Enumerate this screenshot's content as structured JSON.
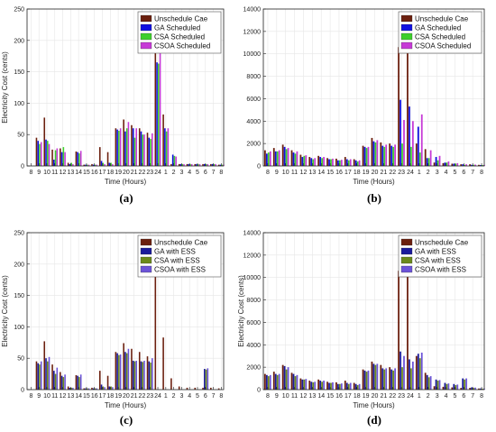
{
  "colors": {
    "unscheduled": "#6b1f0e",
    "ga": "#1010e0",
    "csa": "#3ecf2c",
    "csoa": "#c63ad6",
    "ga_ess": "#1a1a9c",
    "csa_ess": "#6b8a1a",
    "csoa_ess": "#6c54d8",
    "axis": "#222222",
    "grid": "#e6e6e6"
  },
  "chart_data": [
    {
      "type": "bar",
      "caption": "(a)",
      "xlabel": "Time (Hours)",
      "ylabel": "Electricity Cost (cents)",
      "ylim": [
        0,
        250
      ],
      "yticks": [
        0,
        50,
        100,
        150,
        200,
        250
      ],
      "grid": true,
      "legend_position": "top-right",
      "categories": [
        "8",
        "9",
        "10",
        "11",
        "12",
        "13",
        "14",
        "15",
        "16",
        "17",
        "18",
        "19",
        "20",
        "21",
        "22",
        "23",
        "24",
        "1",
        "2",
        "3",
        "4",
        "5",
        "6",
        "7",
        "8"
      ],
      "series": [
        {
          "name": "Unschedule Cae",
          "color_key": "unscheduled",
          "values": [
            0,
            45,
            77,
            26,
            28,
            5,
            23,
            2,
            3,
            30,
            22,
            60,
            74,
            65,
            60,
            53,
            207,
            82,
            3,
            3,
            3,
            3,
            3,
            3,
            2
          ]
        },
        {
          "name": "GA Scheduled",
          "color_key": "ga",
          "values": [
            0,
            40,
            42,
            10,
            22,
            3,
            22,
            2,
            2,
            8,
            5,
            58,
            55,
            60,
            55,
            45,
            165,
            60,
            18,
            3,
            3,
            3,
            3,
            3,
            2
          ]
        },
        {
          "name": "CSA Scheduled",
          "color_key": "csa",
          "values": [
            0,
            35,
            40,
            25,
            30,
            5,
            20,
            2,
            2,
            5,
            5,
            56,
            60,
            45,
            50,
            43,
            163,
            55,
            16,
            3,
            3,
            3,
            3,
            3,
            2
          ]
        },
        {
          "name": "CSOA Scheduled",
          "color_key": "csoa",
          "values": [
            0,
            38,
            35,
            28,
            22,
            3,
            24,
            2,
            2,
            3,
            3,
            60,
            70,
            60,
            50,
            52,
            210,
            60,
            15,
            3,
            3,
            3,
            3,
            3,
            2
          ]
        }
      ]
    },
    {
      "type": "bar",
      "caption": "(b)",
      "xlabel": "Time (Hours)",
      "ylabel": "",
      "ylim": [
        0,
        14000
      ],
      "yticks": [
        0,
        2000,
        4000,
        6000,
        8000,
        10000,
        12000,
        14000
      ],
      "grid": true,
      "legend_position": "top-right",
      "categories": [
        "8",
        "9",
        "10",
        "11",
        "12",
        "13",
        "14",
        "15",
        "16",
        "17",
        "18",
        "19",
        "20",
        "21",
        "22",
        "23",
        "24",
        "1",
        "2",
        "3",
        "4",
        "5",
        "6",
        "7",
        "8"
      ],
      "series": [
        {
          "name": "Unschedule Cae",
          "color_key": "unscheduled",
          "values": [
            1400,
            1600,
            1900,
            1400,
            1000,
            800,
            900,
            700,
            650,
            800,
            600,
            1800,
            2500,
            2100,
            2000,
            10600,
            12300,
            2000,
            1500,
            300,
            250,
            200,
            150,
            150,
            100
          ]
        },
        {
          "name": "GA Scheduled",
          "color_key": "ga",
          "values": [
            1100,
            1300,
            1700,
            1200,
            800,
            700,
            800,
            600,
            500,
            600,
            500,
            1700,
            2200,
            1800,
            1800,
            5900,
            5300,
            3500,
            700,
            800,
            300,
            200,
            150,
            100,
            80
          ]
        },
        {
          "name": "CSA Scheduled",
          "color_key": "csa",
          "values": [
            1200,
            1300,
            1500,
            1100,
            900,
            600,
            700,
            600,
            500,
            500,
            400,
            1600,
            2100,
            1700,
            1700,
            2000,
            1700,
            1200,
            700,
            500,
            300,
            200,
            100,
            100,
            80
          ]
        },
        {
          "name": "CSOA Scheduled",
          "color_key": "csoa",
          "values": [
            1300,
            1400,
            1600,
            1300,
            950,
            700,
            800,
            650,
            550,
            600,
            500,
            1700,
            2300,
            1900,
            1900,
            4100,
            4000,
            4600,
            1400,
            900,
            400,
            250,
            150,
            120,
            90
          ]
        }
      ]
    },
    {
      "type": "bar",
      "caption": "(c)",
      "xlabel": "Time (Hours)",
      "ylabel": "Electricity Cost (cents)",
      "ylim": [
        0,
        250
      ],
      "yticks": [
        0,
        50,
        100,
        150,
        200,
        250
      ],
      "grid": true,
      "legend_position": "top-right",
      "categories": [
        "8",
        "9",
        "10",
        "11",
        "12",
        "13",
        "14",
        "15",
        "16",
        "17",
        "18",
        "19",
        "20",
        "21",
        "22",
        "23",
        "24",
        "1",
        "2",
        "3",
        "4",
        "5",
        "6",
        "7",
        "8"
      ],
      "series": [
        {
          "name": "Unschedule Cae",
          "color_key": "unscheduled",
          "values": [
            0,
            45,
            77,
            40,
            28,
            5,
            23,
            2,
            3,
            30,
            22,
            60,
            74,
            65,
            60,
            53,
            207,
            83,
            18,
            5,
            3,
            3,
            3,
            3,
            2
          ]
        },
        {
          "name": "GA with ESS",
          "color_key": "ga_ess",
          "values": [
            0,
            42,
            50,
            30,
            22,
            3,
            22,
            2,
            2,
            8,
            5,
            58,
            60,
            46,
            45,
            45,
            0,
            0,
            0,
            0,
            0,
            0,
            33,
            0,
            0
          ]
        },
        {
          "name": "CSA with ESS",
          "color_key": "csa_ess",
          "values": [
            0,
            40,
            45,
            25,
            20,
            3,
            20,
            2,
            2,
            5,
            5,
            55,
            58,
            45,
            44,
            43,
            0,
            0,
            0,
            0,
            0,
            0,
            32,
            0,
            0
          ]
        },
        {
          "name": "CSOA with ESS",
          "color_key": "csoa_ess",
          "values": [
            0,
            45,
            52,
            35,
            24,
            3,
            24,
            2,
            2,
            4,
            4,
            56,
            65,
            46,
            46,
            50,
            0,
            0,
            0,
            0,
            0,
            0,
            34,
            0,
            0
          ]
        }
      ]
    },
    {
      "type": "bar",
      "caption": "(d)",
      "xlabel": "Time (Hours)",
      "ylabel": "Electricity Cost (cents)",
      "ylim": [
        0,
        14000
      ],
      "yticks": [
        0,
        2000,
        4000,
        6000,
        8000,
        10000,
        12000,
        14000
      ],
      "grid": true,
      "legend_position": "top-right",
      "categories": [
        "8",
        "9",
        "10",
        "11",
        "12",
        "13",
        "14",
        "15",
        "16",
        "17",
        "18",
        "19",
        "20",
        "21",
        "22",
        "23",
        "24",
        "1",
        "2",
        "3",
        "4",
        "5",
        "6",
        "7",
        "8"
      ],
      "series": [
        {
          "name": "Unschedule Cae",
          "color_key": "unscheduled",
          "values": [
            1400,
            1600,
            2200,
            1500,
            1000,
            800,
            900,
            700,
            650,
            800,
            600,
            1800,
            2500,
            2200,
            2000,
            10600,
            12300,
            3000,
            1500,
            300,
            250,
            200,
            150,
            150,
            100
          ]
        },
        {
          "name": "GA with ESS",
          "color_key": "ga_ess",
          "values": [
            1300,
            1400,
            2100,
            1400,
            900,
            700,
            800,
            600,
            500,
            600,
            500,
            1700,
            2300,
            1900,
            1800,
            3400,
            2700,
            3200,
            1300,
            900,
            600,
            500,
            1000,
            200,
            100
          ]
        },
        {
          "name": "CSA with ESS",
          "color_key": "csa_ess",
          "values": [
            1200,
            1300,
            1800,
            1200,
            900,
            650,
            700,
            600,
            500,
            500,
            400,
            1600,
            2200,
            1800,
            1700,
            2000,
            1900,
            2800,
            1100,
            800,
            500,
            400,
            900,
            150,
            80
          ]
        },
        {
          "name": "CSOA with ESS",
          "color_key": "csoa_ess",
          "values": [
            1300,
            1400,
            2000,
            1300,
            950,
            700,
            800,
            650,
            550,
            600,
            500,
            1700,
            2300,
            1900,
            1900,
            3000,
            2500,
            3300,
            1200,
            850,
            550,
            450,
            1000,
            180,
            90
          ]
        }
      ]
    }
  ]
}
